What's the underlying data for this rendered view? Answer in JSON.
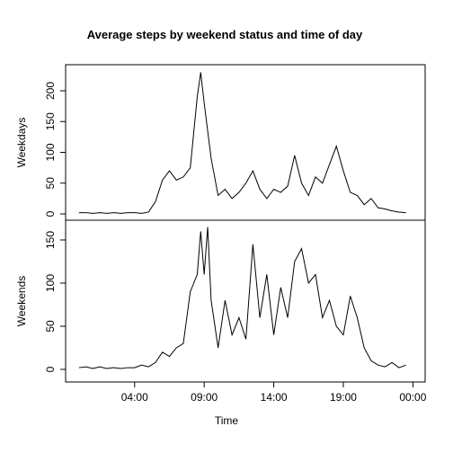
{
  "chart_data": [
    {
      "type": "line",
      "title": "Average steps by weekend status and time of day",
      "ylabel": "Weekdays",
      "x": [
        0,
        0.5,
        1,
        1.5,
        2,
        2.5,
        3,
        3.5,
        4,
        4.5,
        5,
        5.5,
        6,
        6.5,
        7,
        7.5,
        8,
        8.5,
        8.75,
        9,
        9.5,
        10,
        10.5,
        11,
        11.5,
        12,
        12.5,
        13,
        13.5,
        14,
        14.5,
        15,
        15.5,
        16,
        16.5,
        17,
        17.5,
        18,
        18.5,
        19,
        19.5,
        20,
        20.5,
        21,
        21.5,
        22,
        22.5,
        23,
        23.5
      ],
      "series": [
        {
          "name": "Weekdays",
          "color": "#000000",
          "values": [
            2,
            2,
            1,
            2,
            1,
            2,
            1,
            2,
            2,
            1,
            3,
            20,
            55,
            70,
            55,
            60,
            75,
            190,
            230,
            180,
            90,
            30,
            40,
            25,
            35,
            50,
            70,
            40,
            25,
            40,
            35,
            45,
            95,
            50,
            30,
            60,
            50,
            80,
            110,
            70,
            35,
            30,
            15,
            25,
            10,
            8,
            5,
            3,
            2
          ]
        }
      ],
      "xlim": [
        -0.96,
        24.88
      ],
      "ylim": [
        -10.2,
        242.3
      ],
      "yticks": [
        0,
        50,
        100,
        150,
        200
      ]
    },
    {
      "type": "line",
      "ylabel": "Weekends",
      "xlabel": "Time",
      "x": [
        0,
        0.5,
        1,
        1.5,
        2,
        2.5,
        3,
        3.5,
        4,
        4.5,
        5,
        5.5,
        6,
        6.5,
        7,
        7.5,
        8,
        8.5,
        8.75,
        9,
        9.25,
        9.5,
        10,
        10.5,
        11,
        11.5,
        12,
        12.5,
        13,
        13.5,
        14,
        14.5,
        15,
        15.5,
        16,
        16.5,
        17,
        17.5,
        18,
        18.5,
        19,
        19.5,
        20,
        20.5,
        21,
        21.5,
        22,
        22.5,
        23,
        23.5
      ],
      "series": [
        {
          "name": "Weekends",
          "color": "#000000",
          "values": [
            2,
            3,
            1,
            3,
            1,
            2,
            1,
            2,
            2,
            5,
            3,
            8,
            20,
            15,
            25,
            30,
            90,
            110,
            160,
            110,
            165,
            80,
            25,
            80,
            40,
            60,
            35,
            145,
            60,
            110,
            40,
            95,
            60,
            125,
            140,
            100,
            110,
            60,
            80,
            50,
            40,
            85,
            60,
            25,
            10,
            5,
            3,
            8,
            2,
            5
          ]
        }
      ],
      "xlim": [
        -0.96,
        24.88
      ],
      "ylim": [
        -14.6,
        172.9
      ],
      "yticks": [
        0,
        50,
        100,
        150
      ],
      "xticks": [
        {
          "value": 4,
          "label": "04:00"
        },
        {
          "value": 9,
          "label": "09:00"
        },
        {
          "value": 14,
          "label": "14:00"
        },
        {
          "value": 19,
          "label": "19:00"
        },
        {
          "value": 24,
          "label": "00:00"
        }
      ]
    }
  ]
}
